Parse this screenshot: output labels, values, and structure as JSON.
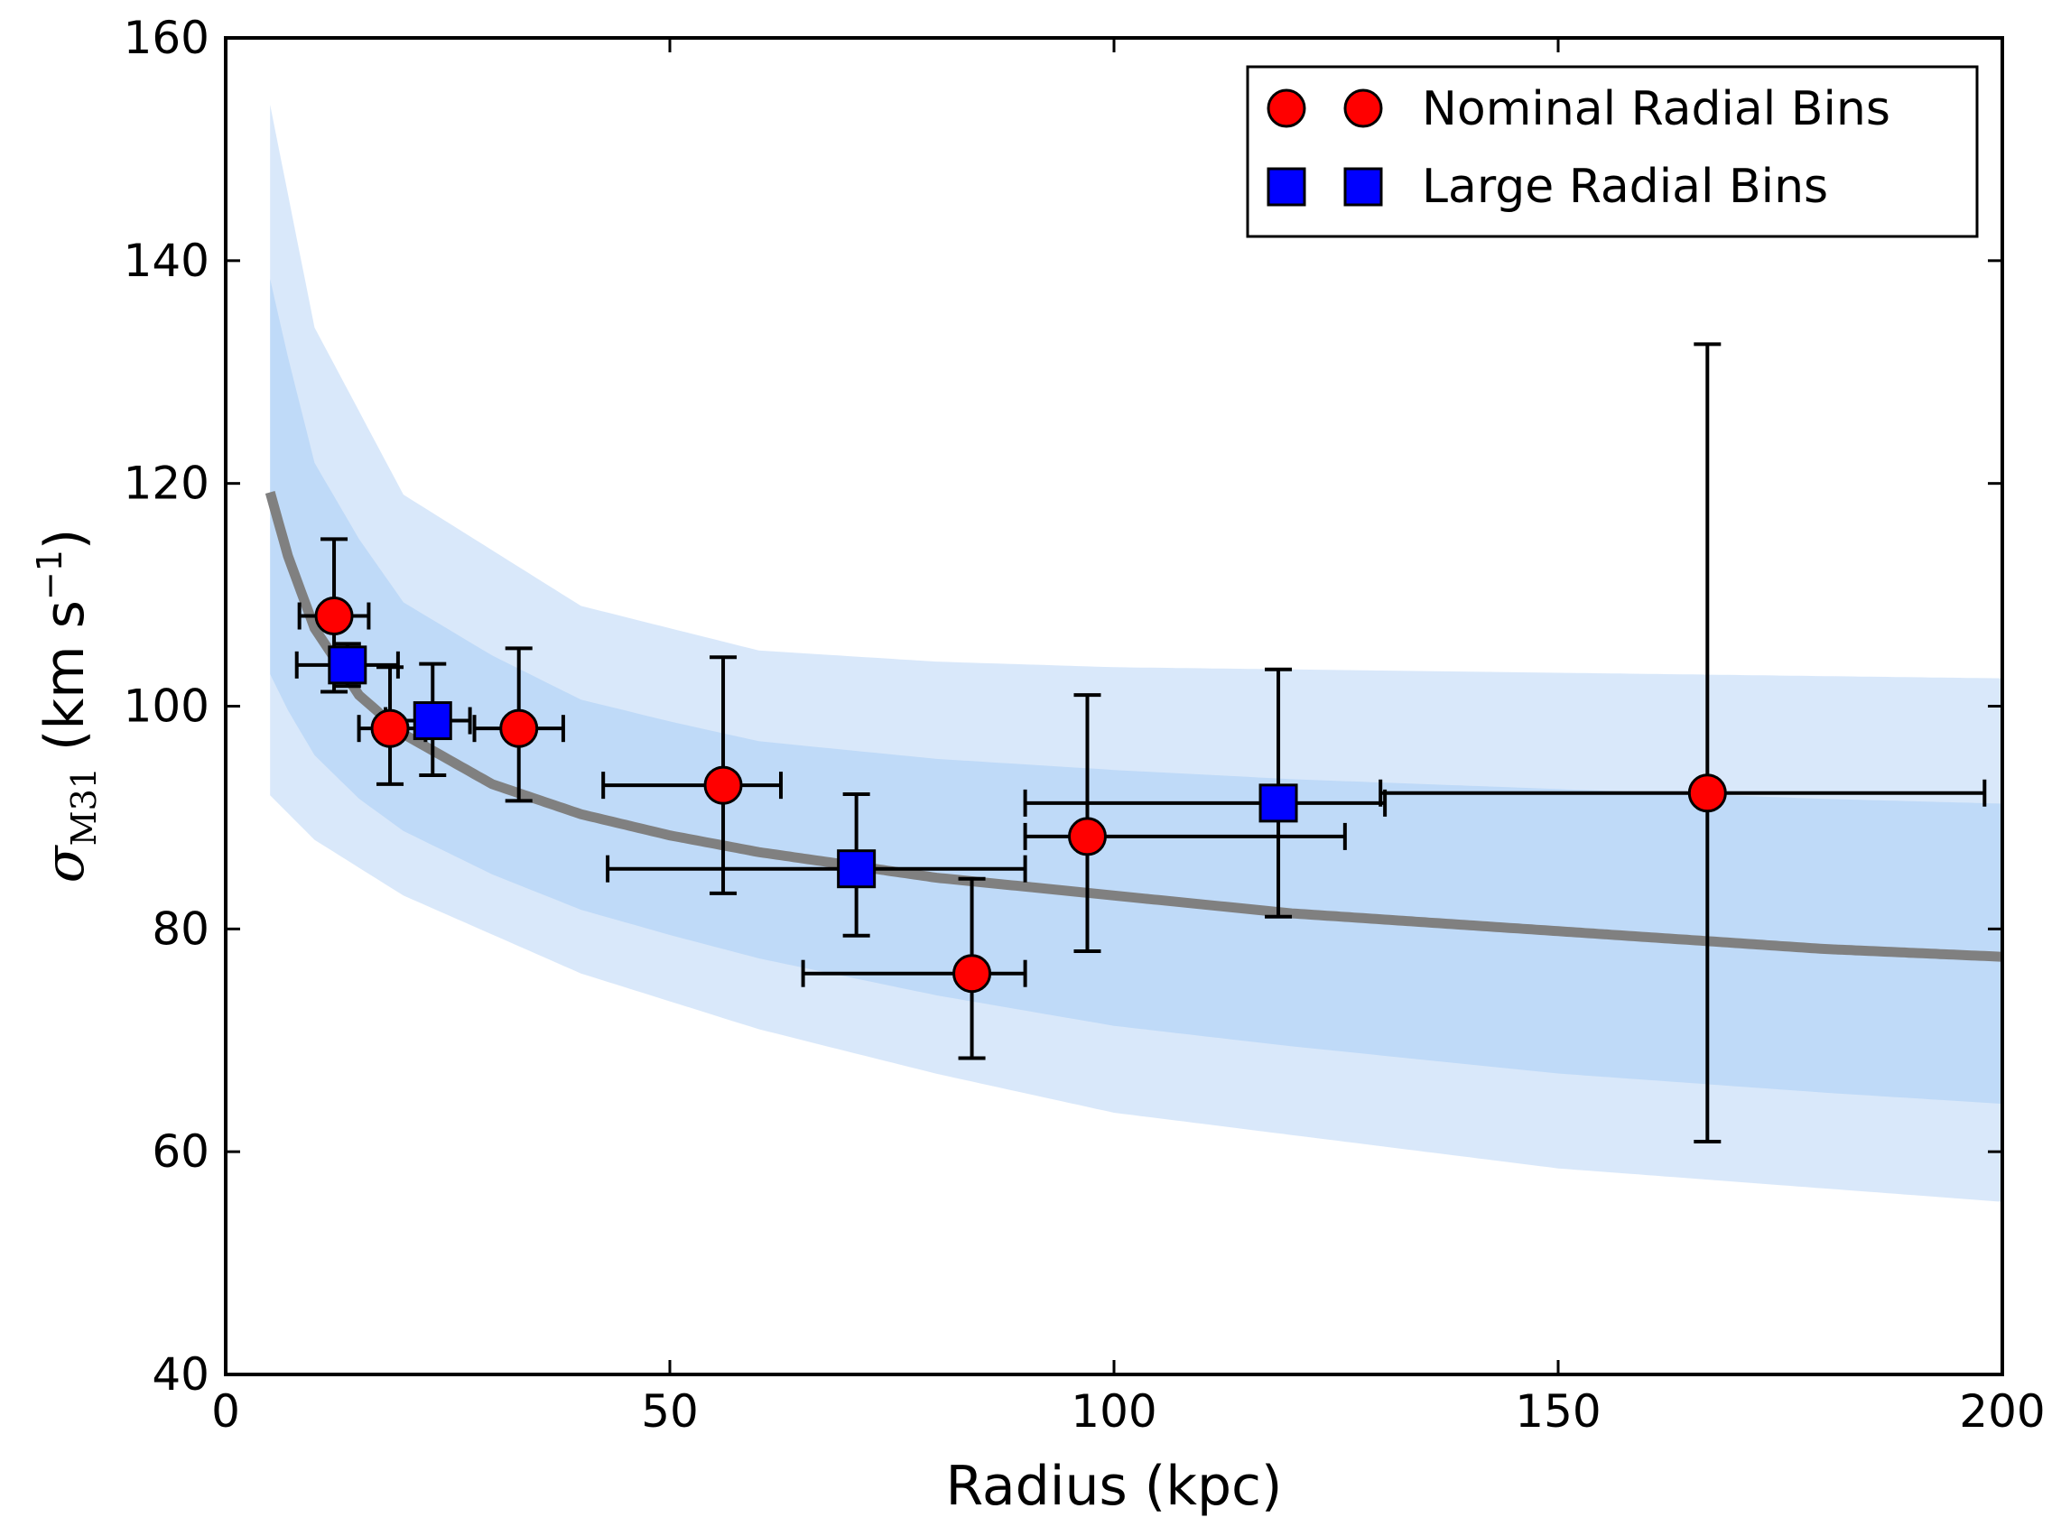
{
  "chart_data": {
    "type": "scatter",
    "title": "",
    "xlabel": "Radius (kpc)",
    "ylabel": {
      "symbol": "σ",
      "subscript": "M31",
      "units_prefix": "(km s",
      "units_exponent": "−1",
      "units_suffix": ")"
    },
    "xlim": [
      0,
      200
    ],
    "ylim": [
      40,
      160
    ],
    "xticks": [
      0,
      50,
      100,
      150,
      200
    ],
    "yticks": [
      40,
      60,
      80,
      100,
      120,
      140,
      160
    ],
    "xtick_labels": [
      "0",
      "50",
      "100",
      "150",
      "200"
    ],
    "ytick_labels": [
      "40",
      "60",
      "80",
      "100",
      "120",
      "140",
      "160"
    ],
    "grid": false,
    "legend_position": "top-right",
    "legend": [
      {
        "label": "Nominal Radial Bins",
        "marker": "circle",
        "color": "#ff0000"
      },
      {
        "label": "Large Radial Bins",
        "marker": "square",
        "color": "#0000ff"
      }
    ],
    "series": [
      {
        "name": "Nominal Radial Bins",
        "marker": "circle",
        "color": "#ff0000",
        "points": [
          {
            "x": 12.2,
            "y": 108.1,
            "xerr": [
              3.9,
              3.9
            ],
            "yerr": [
              6.8,
              6.9
            ]
          },
          {
            "x": 18.5,
            "y": 98.0,
            "xerr": [
              3.5,
              4.0
            ],
            "yerr": [
              5.0,
              5.5
            ]
          },
          {
            "x": 33.0,
            "y": 98.0,
            "xerr": [
              5.0,
              5.0
            ],
            "yerr": [
              6.5,
              7.2
            ]
          },
          {
            "x": 56.0,
            "y": 92.9,
            "xerr": [
              13.5,
              6.5
            ],
            "yerr": [
              9.7,
              11.5
            ]
          },
          {
            "x": 84.0,
            "y": 76.0,
            "xerr": [
              19.0,
              6.0
            ],
            "yerr": [
              7.6,
              8.5
            ]
          },
          {
            "x": 97.0,
            "y": 88.3,
            "xerr": [
              7.0,
              29.0
            ],
            "yerr": [
              10.3,
              12.7
            ]
          },
          {
            "x": 166.8,
            "y": 92.2,
            "xerr": [
              36.8,
              31.2
            ],
            "yerr": [
              31.3,
              40.3
            ]
          }
        ]
      },
      {
        "name": "Large Radial Bins",
        "marker": "square",
        "color": "#0000ff",
        "points": [
          {
            "x": 13.7,
            "y": 103.7,
            "xerr": [
              5.7,
              5.7
            ],
            "yerr": [
              1.9,
              1.9
            ]
          },
          {
            "x": 23.3,
            "y": 98.7,
            "xerr": [
              5.3,
              4.2
            ],
            "yerr": [
              4.9,
              5.1
            ]
          },
          {
            "x": 71.0,
            "y": 85.4,
            "xerr": [
              28.0,
              19.0
            ],
            "yerr": [
              6.0,
              6.7
            ]
          },
          {
            "x": 118.5,
            "y": 91.3,
            "xerr": [
              28.5,
              12.0
            ],
            "yerr": [
              10.2,
              12.0
            ]
          }
        ]
      }
    ],
    "best_fit_line": {
      "color": "#808080",
      "x": [
        5,
        7,
        10,
        15,
        20,
        30,
        40,
        50,
        60,
        80,
        100,
        120,
        150,
        180,
        200
      ],
      "y": [
        119.2,
        113.5,
        107.0,
        101.0,
        97.5,
        93.0,
        90.3,
        88.4,
        86.9,
        84.6,
        83.0,
        81.4,
        79.8,
        78.2,
        77.5
      ]
    },
    "model_band": {
      "color": "#aacdf5",
      "x": [
        5,
        10,
        20,
        40,
        60,
        80,
        100,
        150,
        200
      ],
      "upper": [
        154,
        134,
        119,
        109,
        105,
        104,
        103.5,
        103,
        102.5
      ],
      "lower": [
        92,
        88,
        83,
        76,
        71,
        67,
        63.5,
        58.5,
        55.5
      ]
    }
  }
}
